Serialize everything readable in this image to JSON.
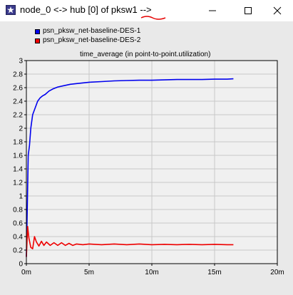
{
  "window": {
    "title": "node_0 <-> hub [0] of pksw1 -->",
    "minimize_label": "minimize",
    "maximize_label": "maximize",
    "close_label": "close"
  },
  "colors": {
    "series_1": "#0000ee",
    "series_2": "#ee0000",
    "plot_bg": "#f0f0f0",
    "window_bg": "#e9e9e9",
    "annotation_underline": "#e60000"
  },
  "chart_data": {
    "type": "line",
    "title": "time_average (in point-to-point.utilization)",
    "xlabel": "",
    "ylabel": "",
    "xlim": [
      0,
      20
    ],
    "ylim": [
      0,
      3
    ],
    "x_unit": "minutes",
    "x_ticks": [
      "0m",
      "5m",
      "10m",
      "15m",
      "20m"
    ],
    "y_ticks": [
      "0",
      "0.2",
      "0.4",
      "0.6",
      "0.8",
      "1",
      "1.2",
      "1.4",
      "1.6",
      "1.8",
      "2",
      "2.2",
      "2.4",
      "2.6",
      "2.8",
      "3"
    ],
    "grid": true,
    "legend_position": "top-left",
    "series": [
      {
        "name": "psn_pksw_net-baseline-DES-1",
        "color": "#0000ee",
        "x": [
          0,
          0.08,
          0.15,
          0.25,
          0.35,
          0.5,
          0.7,
          0.9,
          1.1,
          1.3,
          1.5,
          1.8,
          2.1,
          2.5,
          3.0,
          3.5,
          4.0,
          5.0,
          6.0,
          7.0,
          8.0,
          9.0,
          10.0,
          11.0,
          12.0,
          13.0,
          14.0,
          15.0,
          16.0,
          16.5
        ],
        "y": [
          0.1,
          0.9,
          1.6,
          1.75,
          2.0,
          2.2,
          2.3,
          2.4,
          2.45,
          2.48,
          2.5,
          2.55,
          2.58,
          2.61,
          2.63,
          2.65,
          2.66,
          2.68,
          2.69,
          2.7,
          2.705,
          2.71,
          2.71,
          2.715,
          2.72,
          2.72,
          2.72,
          2.725,
          2.725,
          2.73
        ]
      },
      {
        "name": "psn_pksw_net-baseline-DES-2",
        "color": "#ee0000",
        "x": [
          0,
          0.1,
          0.2,
          0.35,
          0.5,
          0.65,
          0.8,
          1.0,
          1.2,
          1.4,
          1.6,
          1.9,
          2.2,
          2.5,
          2.8,
          3.1,
          3.4,
          3.7,
          4.0,
          4.5,
          5.0,
          6.0,
          7.0,
          8.0,
          9.0,
          10.0,
          11.0,
          12.0,
          13.0,
          14.0,
          15.0,
          16.0,
          16.5
        ],
        "y": [
          0.1,
          0.55,
          0.38,
          0.24,
          0.22,
          0.4,
          0.32,
          0.26,
          0.33,
          0.27,
          0.32,
          0.27,
          0.31,
          0.27,
          0.31,
          0.27,
          0.3,
          0.27,
          0.29,
          0.28,
          0.29,
          0.28,
          0.29,
          0.28,
          0.29,
          0.28,
          0.285,
          0.28,
          0.285,
          0.28,
          0.285,
          0.28,
          0.28
        ]
      }
    ]
  }
}
